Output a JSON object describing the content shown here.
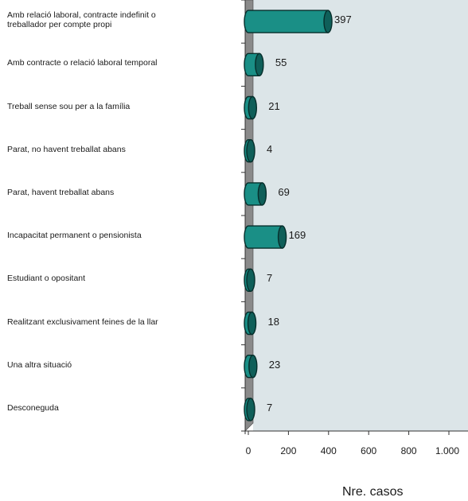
{
  "chart_data": {
    "type": "bar",
    "orientation": "horizontal",
    "categories": [
      "Amb relació laboral, contracte indefinit o\ntreballador per compte propi",
      "Amb contracte o relació laboral temporal",
      "Treball sense sou per a la família",
      "Parat, no havent treballat abans",
      "Parat, havent treballat abans",
      "Incapacitat permanent o pensionista",
      "Estudiant o opositant",
      "Realitzant exclusivament feines de la llar",
      "Una altra situació",
      "Desconeguda"
    ],
    "values": [
      397,
      55,
      21,
      4,
      69,
      169,
      7,
      18,
      23,
      7
    ],
    "value_labels": [
      "397",
      "55",
      "21",
      "4",
      "69",
      "169",
      "7",
      "18",
      "23",
      "7"
    ],
    "xlim": [
      0,
      1000
    ],
    "x_ticks": [
      0,
      200,
      400,
      600,
      800,
      1000
    ],
    "x_tick_labels": [
      "0",
      "200",
      "400",
      "600",
      "800",
      "1.000"
    ],
    "xlabel": "Nre. casos",
    "grid": false,
    "colors": {
      "bar_fill": "#1a8f86",
      "bar_cap": "#0f5f59",
      "bar_outline": "#062e2b",
      "plot_background": "#dce5e8",
      "wall": "#8a8a8a"
    }
  }
}
